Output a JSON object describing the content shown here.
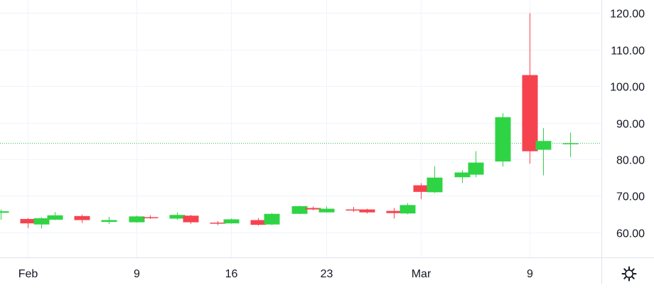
{
  "chart_data": {
    "type": "candlestick",
    "x_tick_labels": [
      {
        "label": "Feb",
        "date": "2024-02-01"
      },
      {
        "label": "9",
        "date": "2024-02-09"
      },
      {
        "label": "16",
        "date": "2024-02-16"
      },
      {
        "label": "23",
        "date": "2024-02-23"
      },
      {
        "label": "Mar",
        "date": "2024-03-01"
      },
      {
        "label": "9",
        "date": "2024-03-09"
      }
    ],
    "y_tick_labels": [
      "60.00",
      "70.00",
      "80.00",
      "90.00",
      "100.00",
      "110.00",
      "120.00"
    ],
    "y_ticks": [
      60,
      70,
      80,
      90,
      100,
      110,
      120
    ],
    "ylim": [
      53.2,
      123.5
    ],
    "grid": true,
    "current_price": 84.4,
    "colors": {
      "up": "#2fd444",
      "down": "#f6424f",
      "grid": "#f0f3fa",
      "price_line": "#3fbf55",
      "text": "#131722"
    },
    "candles": [
      {
        "date": "2024-01-30",
        "open": 65.4,
        "high": 66.3,
        "low": 63.5,
        "close": 65.8
      },
      {
        "date": "2024-02-01",
        "open": 63.7,
        "high": 64.0,
        "low": 61.2,
        "close": 62.5
      },
      {
        "date": "2024-02-02",
        "open": 62.2,
        "high": 64.2,
        "low": 61.1,
        "close": 63.9
      },
      {
        "date": "2024-02-03",
        "open": 63.5,
        "high": 65.6,
        "low": 63.4,
        "close": 64.7
      },
      {
        "date": "2024-02-05",
        "open": 64.5,
        "high": 64.9,
        "low": 62.6,
        "close": 63.4
      },
      {
        "date": "2024-02-07",
        "open": 62.9,
        "high": 64.3,
        "low": 62.3,
        "close": 63.4
      },
      {
        "date": "2024-02-09",
        "open": 62.8,
        "high": 64.6,
        "low": 62.7,
        "close": 64.4
      },
      {
        "date": "2024-02-10",
        "open": 64.2,
        "high": 64.7,
        "low": 63.7,
        "close": 64.0
      },
      {
        "date": "2024-02-12",
        "open": 63.8,
        "high": 65.5,
        "low": 63.5,
        "close": 64.8
      },
      {
        "date": "2024-02-13",
        "open": 64.6,
        "high": 64.8,
        "low": 62.4,
        "close": 62.8
      },
      {
        "date": "2024-02-15",
        "open": 62.7,
        "high": 63.1,
        "low": 62.0,
        "close": 62.5
      },
      {
        "date": "2024-02-16",
        "open": 62.5,
        "high": 63.8,
        "low": 62.4,
        "close": 63.6
      },
      {
        "date": "2024-02-18",
        "open": 63.4,
        "high": 63.9,
        "low": 61.9,
        "close": 62.1
      },
      {
        "date": "2024-02-19",
        "open": 62.2,
        "high": 65.3,
        "low": 62.0,
        "close": 65.1
      },
      {
        "date": "2024-02-21",
        "open": 65.1,
        "high": 67.3,
        "low": 65.0,
        "close": 67.2
      },
      {
        "date": "2024-02-22",
        "open": 66.7,
        "high": 67.1,
        "low": 66.1,
        "close": 66.3
      },
      {
        "date": "2024-02-23",
        "open": 65.5,
        "high": 67.1,
        "low": 65.4,
        "close": 66.5
      },
      {
        "date": "2024-02-25",
        "open": 66.3,
        "high": 67.0,
        "low": 65.6,
        "close": 66.0
      },
      {
        "date": "2024-02-26",
        "open": 66.3,
        "high": 66.5,
        "low": 65.2,
        "close": 65.5
      },
      {
        "date": "2024-02-28",
        "open": 65.9,
        "high": 66.7,
        "low": 63.8,
        "close": 65.3
      },
      {
        "date": "2024-02-29",
        "open": 65.2,
        "high": 68.0,
        "low": 65.0,
        "close": 67.5
      },
      {
        "date": "2024-03-01",
        "open": 72.9,
        "high": 73.5,
        "low": 69.1,
        "close": 71.1
      },
      {
        "date": "2024-03-02",
        "open": 71.0,
        "high": 78.1,
        "low": 70.8,
        "close": 75.0
      },
      {
        "date": "2024-03-04",
        "open": 75.1,
        "high": 77.0,
        "low": 73.5,
        "close": 76.4
      },
      {
        "date": "2024-03-05",
        "open": 75.8,
        "high": 82.2,
        "low": 75.1,
        "close": 79.1
      },
      {
        "date": "2024-03-07",
        "open": 79.4,
        "high": 92.6,
        "low": 78.0,
        "close": 91.5
      },
      {
        "date": "2024-03-09",
        "open": 103.0,
        "high": 119.9,
        "low": 78.8,
        "close": 82.2
      },
      {
        "date": "2024-03-10",
        "open": 82.6,
        "high": 88.5,
        "low": 75.6,
        "close": 85.0
      },
      {
        "date": "2024-03-12",
        "open": 84.3,
        "high": 87.3,
        "low": 80.7,
        "close": 84.4
      }
    ]
  },
  "toolbar": {
    "settings_icon": "gear-icon"
  }
}
